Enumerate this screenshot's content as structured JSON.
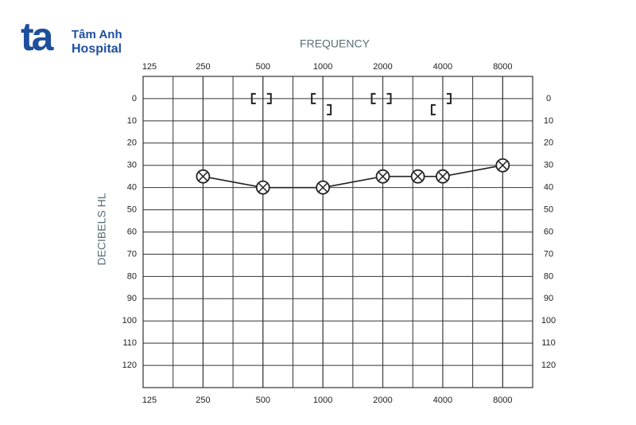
{
  "logo": {
    "mark": "ta",
    "line1": "Tâm Anh",
    "line2": "Hospital"
  },
  "chart_data": {
    "type": "audiogram",
    "title": "FREQUENCY",
    "y_label": "DECIBELS HL",
    "xscale": "log",
    "xlim": [
      125,
      11314
    ],
    "xticks": [
      125,
      250,
      500,
      1000,
      2000,
      4000,
      8000
    ],
    "ylim": [
      -10,
      130
    ],
    "y_inverted": true,
    "yticks": [
      0,
      10,
      20,
      30,
      40,
      50,
      60,
      70,
      80,
      90,
      100,
      110,
      120
    ],
    "grid": true,
    "series": [
      {
        "marker": "circled-x",
        "color": "#222222",
        "x": [
          250,
          500,
          1000,
          2000,
          3000,
          4000,
          8000
        ],
        "values": [
          35,
          40,
          40,
          35,
          35,
          35,
          30
        ]
      },
      {
        "marker": "left-bracket",
        "color": "#222222",
        "x": [
          500,
          1000,
          2000,
          4000
        ],
        "values": [
          0,
          0,
          0,
          5
        ]
      },
      {
        "marker": "right-bracket",
        "color": "#222222",
        "x": [
          500,
          1000,
          2000,
          4000
        ],
        "values": [
          0,
          5,
          0,
          0
        ]
      }
    ]
  }
}
